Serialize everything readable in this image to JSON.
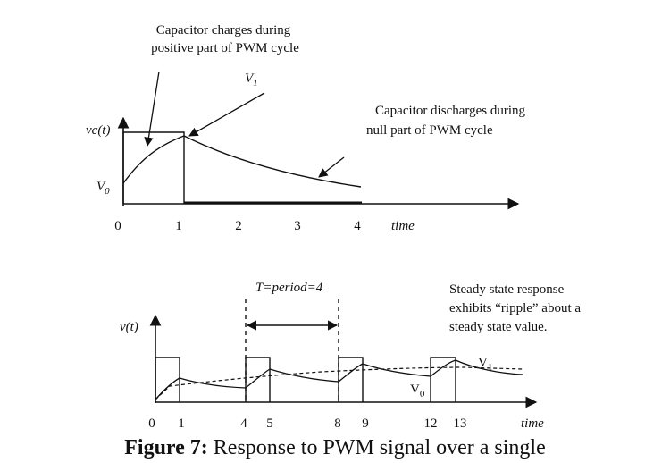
{
  "top_diagram": {
    "annotation_charge": [
      "Capacitor charges during",
      "positive part of PWM cycle"
    ],
    "annotation_discharge": [
      "Capacitor discharges during",
      "null part of PWM cycle"
    ],
    "label_v1": "V",
    "label_v1_sub": "1",
    "label_vc": "vc(t)",
    "label_v0": "V",
    "label_v0_sub": "0",
    "xlabel": "time",
    "ticks": [
      "0",
      "1",
      "2",
      "3",
      "4"
    ]
  },
  "bottom_diagram": {
    "period_label": "T=period=4",
    "annotation_steady": [
      "Steady state response",
      "exhibits “ripple” about a",
      "steady state value."
    ],
    "label_vt": "v(t)",
    "label_v1": "V",
    "label_v1_sub": "1",
    "label_v0": "V",
    "label_v0_sub": "0",
    "xlabel": "time",
    "ticks": [
      "0",
      "1",
      "4",
      "5",
      "8",
      "9",
      "12",
      "13"
    ]
  },
  "caption": {
    "prefix": "Figure 7:",
    "text": " Response to PWM signal over a single"
  }
}
